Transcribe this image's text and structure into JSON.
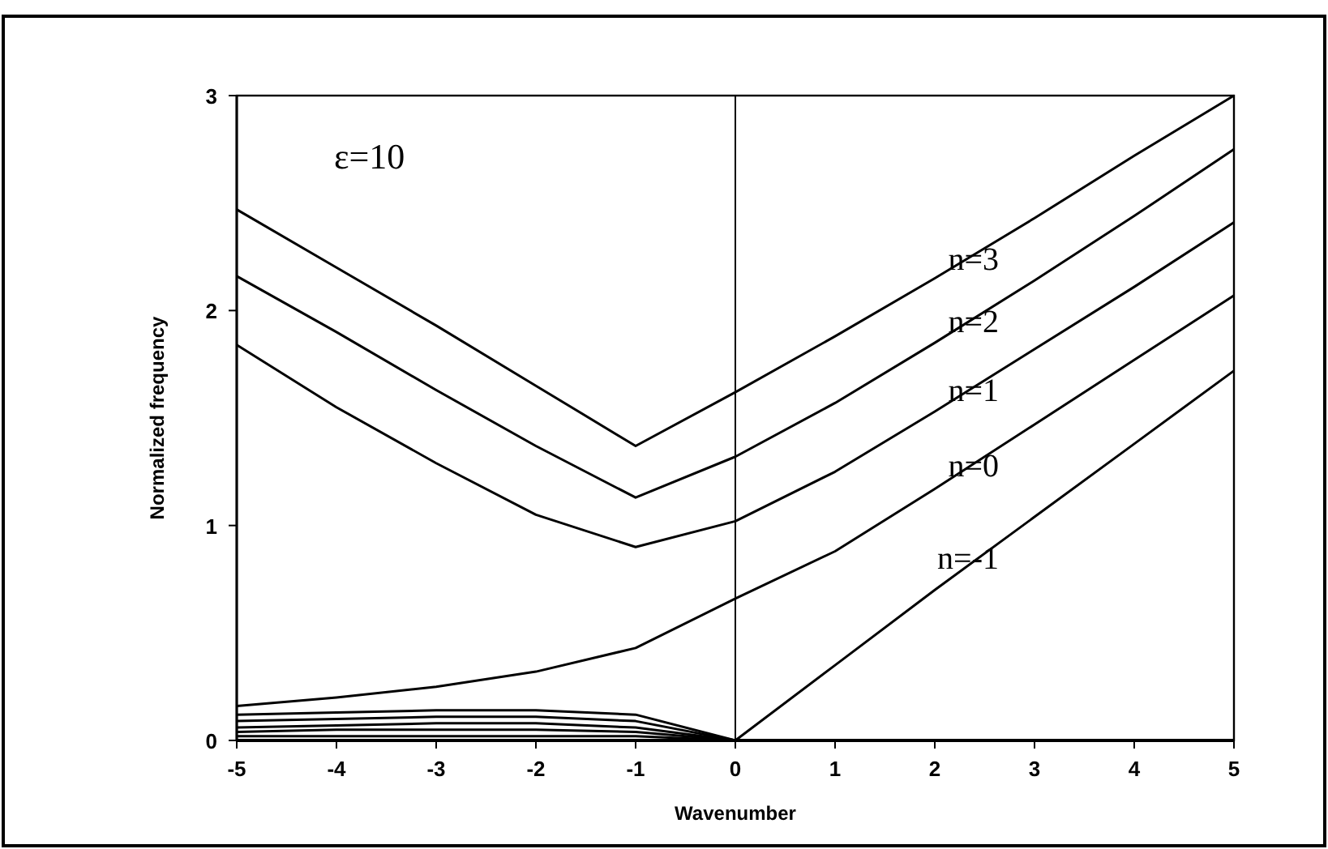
{
  "chart_data": {
    "type": "line",
    "xlabel": "Wavenumber",
    "ylabel": "Normalized frequency",
    "annotations": [
      "ε=10"
    ],
    "x": [
      -5,
      -4,
      -3,
      -2,
      -1,
      0,
      1,
      2,
      3,
      4,
      5
    ],
    "xlim": [
      -5,
      5
    ],
    "xticks": [
      -5,
      -4,
      -3,
      -2,
      -1,
      0,
      1,
      2,
      3,
      4,
      5
    ],
    "ylim": [
      0,
      3
    ],
    "yticks": [
      0,
      1,
      2,
      3
    ],
    "grid": false,
    "marker": "none",
    "line_style": "solid",
    "ref_lines": [
      {
        "axis": "x",
        "value": 0,
        "color": "#000000"
      }
    ],
    "series": [
      {
        "name": "n=3",
        "color": "#000000",
        "values": [
          2.47,
          2.2,
          1.93,
          1.65,
          1.37,
          1.62,
          1.88,
          2.15,
          2.43,
          2.72,
          3.0
        ]
      },
      {
        "name": "n=2",
        "color": "#000000",
        "values": [
          2.16,
          1.9,
          1.63,
          1.37,
          1.13,
          1.32,
          1.57,
          1.85,
          2.14,
          2.44,
          2.75
        ]
      },
      {
        "name": "n=1",
        "color": "#000000",
        "values": [
          1.84,
          1.55,
          1.29,
          1.05,
          0.9,
          1.02,
          1.25,
          1.53,
          1.82,
          2.11,
          2.41
        ]
      },
      {
        "name": "n=0",
        "color": "#000000",
        "values": [
          0.16,
          0.2,
          0.25,
          0.32,
          0.43,
          0.66,
          0.88,
          1.17,
          1.47,
          1.77,
          2.07
        ]
      },
      {
        "name": "n=-1",
        "color": "#000000",
        "values": [
          0.12,
          0.13,
          0.14,
          0.14,
          0.12,
          0,
          0.35,
          0.7,
          1.04,
          1.38,
          1.72
        ]
      },
      {
        "color": "#000000",
        "x": [
          -5,
          -4,
          -3,
          -2,
          -1,
          0
        ],
        "values": [
          0.09,
          0.1,
          0.11,
          0.11,
          0.09,
          0
        ]
      },
      {
        "color": "#000000",
        "x": [
          -5,
          -4,
          -3,
          -2,
          -1,
          0
        ],
        "values": [
          0.06,
          0.07,
          0.08,
          0.08,
          0.06,
          0
        ]
      },
      {
        "color": "#000000",
        "x": [
          -5,
          -4,
          -3,
          -2,
          -1,
          0
        ],
        "values": [
          0.04,
          0.05,
          0.05,
          0.05,
          0.04,
          0
        ]
      },
      {
        "color": "#000000",
        "x": [
          -5,
          -4,
          -3,
          -2,
          -1,
          0
        ],
        "values": [
          0.02,
          0.02,
          0.02,
          0.02,
          0.02,
          0
        ]
      }
    ]
  }
}
